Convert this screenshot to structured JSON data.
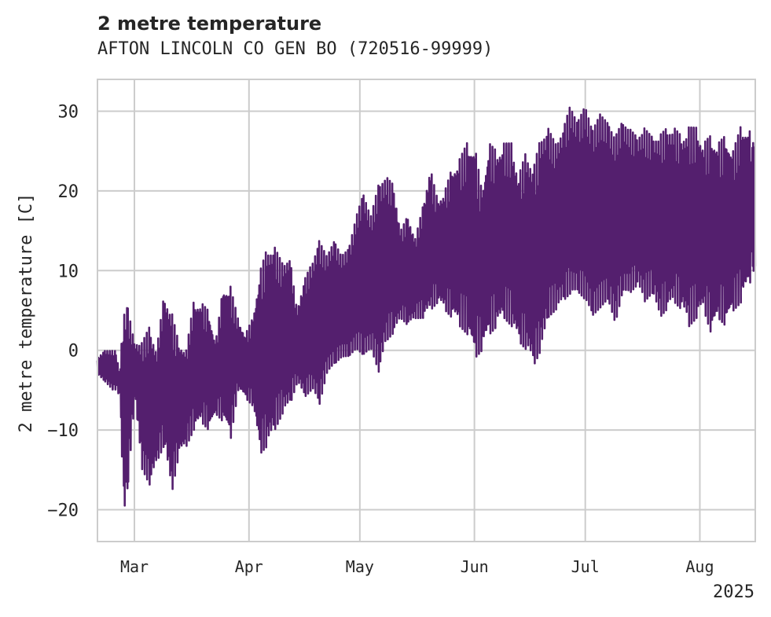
{
  "chart_data": {
    "type": "line",
    "title": "2 metre temperature",
    "subtitle": "AFTON LINCOLN CO GEN BO (720516-99999)",
    "xlabel": "",
    "ylabel": "2 metre temperature [C]",
    "xlim": [
      "2025-02-19",
      "2025-08-16"
    ],
    "ylim": [
      -24,
      34
    ],
    "x_ticks": [
      {
        "date": "2025-03-01",
        "label": "Mar"
      },
      {
        "date": "2025-04-01",
        "label": "Apr"
      },
      {
        "date": "2025-05-01",
        "label": "May"
      },
      {
        "date": "2025-06-01",
        "label": "Jun"
      },
      {
        "date": "2025-07-01",
        "label": "Jul"
      },
      {
        "date": "2025-08-01",
        "label": "Aug"
      }
    ],
    "x_offset_label": "2025",
    "y_ticks": [
      -20,
      -10,
      0,
      10,
      20,
      30
    ],
    "grid": true,
    "legend": "none",
    "series": [
      {
        "color": "#541f6e",
        "x": [
          "2025-02-19",
          "2025-02-21",
          "2025-02-23",
          "2025-02-24",
          "2025-02-25",
          "2025-02-26",
          "2025-02-27",
          "2025-03-01",
          "2025-03-03",
          "2025-03-05",
          "2025-03-07",
          "2025-03-09",
          "2025-03-11",
          "2025-03-13",
          "2025-03-15",
          "2025-03-17",
          "2025-03-19",
          "2025-03-21",
          "2025-03-23",
          "2025-03-25",
          "2025-03-27",
          "2025-03-29",
          "2025-03-31",
          "2025-04-02",
          "2025-04-04",
          "2025-04-06",
          "2025-04-08",
          "2025-04-10",
          "2025-04-12",
          "2025-04-14",
          "2025-04-16",
          "2025-04-18",
          "2025-04-20",
          "2025-04-22",
          "2025-04-24",
          "2025-04-26",
          "2025-04-28",
          "2025-04-30",
          "2025-05-02",
          "2025-05-04",
          "2025-05-06",
          "2025-05-08",
          "2025-05-10",
          "2025-05-12",
          "2025-05-14",
          "2025-05-16",
          "2025-05-18",
          "2025-05-20",
          "2025-05-22",
          "2025-05-24",
          "2025-05-26",
          "2025-05-28",
          "2025-05-30",
          "2025-06-01",
          "2025-06-03",
          "2025-06-05",
          "2025-06-07",
          "2025-06-09",
          "2025-06-11",
          "2025-06-13",
          "2025-06-15",
          "2025-06-17",
          "2025-06-19",
          "2025-06-21",
          "2025-06-23",
          "2025-06-25",
          "2025-06-27",
          "2025-06-29",
          "2025-07-01",
          "2025-07-03",
          "2025-07-05",
          "2025-07-07",
          "2025-07-09",
          "2025-07-11",
          "2025-07-13",
          "2025-07-15",
          "2025-07-17",
          "2025-07-19",
          "2025-07-21",
          "2025-07-23",
          "2025-07-25",
          "2025-07-27",
          "2025-07-29",
          "2025-07-31",
          "2025-08-02",
          "2025-08-04",
          "2025-08-06",
          "2025-08-08",
          "2025-08-10",
          "2025-08-12",
          "2025-08-14",
          "2025-08-15"
        ],
        "max": [
          -1,
          0,
          0,
          0,
          -3,
          5,
          6,
          1,
          1,
          3,
          0,
          7,
          5,
          1,
          0,
          6,
          6,
          5,
          1,
          8,
          8,
          4,
          2,
          4,
          10,
          13,
          13,
          11,
          12,
          5,
          9,
          11,
          14,
          12,
          14,
          12,
          13,
          17,
          20,
          17,
          21,
          22,
          21,
          15,
          17,
          14,
          18,
          23,
          19,
          20,
          23,
          24,
          26,
          26,
          20,
          26,
          25,
          26,
          26,
          22,
          25,
          23,
          27,
          28,
          26,
          28,
          31,
          29,
          31,
          28,
          30,
          29,
          27,
          29,
          28,
          27,
          28,
          27,
          27,
          28,
          28,
          27,
          28,
          28,
          26,
          27,
          26,
          27,
          25,
          28,
          28,
          27
        ],
        "min": [
          -3,
          -4,
          -5,
          -5,
          -6,
          -21,
          -18,
          -6,
          -15,
          -17,
          -14,
          -12,
          -18,
          -13,
          -12,
          -10,
          -9,
          -10,
          -8,
          -9,
          -11,
          -5,
          -6,
          -7,
          -13,
          -12,
          -10,
          -8,
          -7,
          -4,
          -6,
          -5,
          -7,
          -3,
          -2,
          -1,
          -1,
          0,
          -1,
          0,
          -3,
          1,
          2,
          4,
          3,
          4,
          4,
          5,
          6,
          5,
          4,
          3,
          2,
          -1,
          0,
          2,
          3,
          4,
          3,
          1,
          0,
          -2,
          0,
          4,
          5,
          6,
          7,
          7,
          6,
          4,
          5,
          6,
          3,
          7,
          7,
          8,
          6,
          7,
          4,
          5,
          6,
          5,
          3,
          4,
          5,
          2,
          4,
          3,
          5,
          6,
          8,
          9
        ]
      }
    ]
  }
}
